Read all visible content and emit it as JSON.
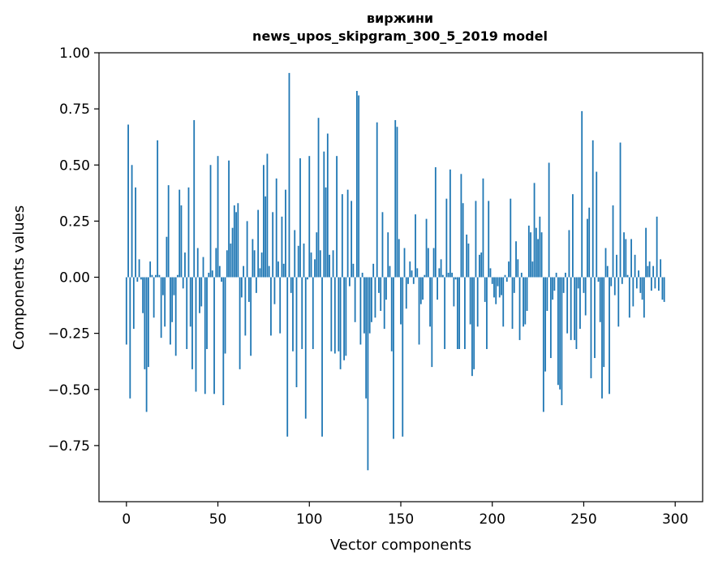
{
  "chart_data": {
    "type": "bar",
    "title": "виржини",
    "subtitle": "news_upos_skipgram_300_5_2019 model",
    "xlabel": "Vector components",
    "ylabel": "Components values",
    "xlim": [
      -15,
      315
    ],
    "ylim": [
      -1.0,
      1.0
    ],
    "xticks": [
      0,
      50,
      100,
      150,
      200,
      250,
      300
    ],
    "xtick_labels": [
      "0",
      "50",
      "100",
      "150",
      "200",
      "250",
      "300"
    ],
    "yticks": [
      1.0,
      0.75,
      0.5,
      0.25,
      0.0,
      -0.25,
      -0.5,
      -0.75
    ],
    "ytick_labels": [
      "1.00",
      "0.75",
      "0.50",
      "0.25",
      "0.00",
      "−0.25",
      "−0.50",
      "−0.75"
    ],
    "bar_color": "#1f77b4",
    "grid": false,
    "values": [
      -0.3,
      0.68,
      -0.54,
      0.5,
      -0.23,
      0.4,
      -0.02,
      0.08,
      -0.01,
      -0.16,
      -0.41,
      -0.6,
      -0.4,
      0.07,
      0.01,
      -0.18,
      0.01,
      0.61,
      0.01,
      -0.27,
      -0.08,
      -0.22,
      0.18,
      0.41,
      -0.3,
      -0.2,
      -0.08,
      -0.35,
      0.01,
      0.39,
      0.32,
      -0.05,
      0.11,
      -0.32,
      0.4,
      -0.22,
      -0.41,
      0.7,
      -0.51,
      0.13,
      -0.16,
      -0.13,
      0.09,
      -0.52,
      -0.32,
      0.02,
      0.5,
      0.03,
      -0.52,
      0.13,
      0.54,
      0.05,
      -0.02,
      -0.57,
      -0.34,
      0.12,
      0.52,
      0.15,
      0.22,
      0.32,
      0.29,
      0.33,
      -0.41,
      -0.09,
      0.05,
      -0.26,
      0.25,
      -0.11,
      -0.35,
      0.17,
      0.12,
      -0.07,
      0.3,
      0.04,
      0.11,
      0.5,
      0.36,
      0.55,
      0.05,
      -0.26,
      0.29,
      -0.12,
      0.44,
      0.07,
      -0.25,
      0.27,
      0.06,
      0.39,
      -0.71,
      0.91,
      -0.07,
      -0.33,
      0.21,
      -0.49,
      0.14,
      0.53,
      -0.32,
      0.15,
      -0.63,
      -0.01,
      0.54,
      0.11,
      -0.32,
      0.08,
      0.2,
      0.71,
      0.12,
      -0.71,
      0.56,
      0.4,
      0.64,
      0.1,
      -0.33,
      0.12,
      -0.34,
      0.54,
      -0.33,
      -0.41,
      0.37,
      -0.37,
      -0.35,
      0.39,
      -0.04,
      0.34,
      0.06,
      -0.2,
      0.83,
      0.81,
      -0.3,
      0.02,
      -0.25,
      -0.54,
      -0.86,
      -0.25,
      -0.2,
      0.06,
      -0.18,
      0.69,
      -0.07,
      -0.15,
      0.29,
      -0.23,
      -0.1,
      0.2,
      0.05,
      -0.33,
      -0.72,
      0.7,
      0.67,
      0.17,
      -0.21,
      -0.71,
      0.13,
      -0.14,
      -0.03,
      0.07,
      0.03,
      -0.03,
      0.28,
      0.04,
      -0.3,
      -0.12,
      -0.1,
      0.01,
      0.26,
      0.13,
      -0.22,
      -0.4,
      0.13,
      0.49,
      -0.1,
      0.04,
      0.08,
      0.01,
      -0.32,
      0.35,
      0.02,
      0.48,
      0.02,
      -0.13,
      -0.01,
      -0.32,
      -0.32,
      0.46,
      0.33,
      -0.32,
      0.19,
      0.15,
      -0.21,
      -0.44,
      -0.41,
      0.34,
      -0.22,
      0.1,
      0.11,
      0.44,
      -0.11,
      -0.32,
      0.34,
      0.04,
      -0.03,
      -0.09,
      -0.12,
      -0.04,
      -0.09,
      -0.08,
      -0.22,
      0.01,
      -0.02,
      0.07,
      0.35,
      -0.23,
      -0.07,
      0.16,
      0.08,
      -0.28,
      0.02,
      -0.22,
      -0.21,
      -0.15,
      0.23,
      0.2,
      0.07,
      0.42,
      0.22,
      0.17,
      0.27,
      0.2,
      -0.6,
      -0.42,
      -0.15,
      0.51,
      -0.36,
      -0.1,
      -0.06,
      0.02,
      -0.48,
      -0.5,
      -0.57,
      -0.07,
      0.02,
      -0.25,
      0.21,
      -0.28,
      0.37,
      -0.28,
      -0.32,
      -0.05,
      -0.23,
      0.74,
      -0.07,
      -0.17,
      0.26,
      0.31,
      -0.45,
      0.61,
      -0.36,
      0.47,
      -0.02,
      -0.2,
      -0.54,
      -0.4,
      0.13,
      0.05,
      -0.52,
      -0.04,
      0.32,
      -0.08,
      0.1,
      -0.22,
      0.6,
      -0.03,
      0.2,
      0.17,
      0.01,
      -0.18,
      0.17,
      -0.13,
      0.1,
      -0.05,
      0.03,
      -0.07,
      -0.1,
      -0.18,
      0.22,
      0.05,
      0.07,
      -0.06,
      0.05,
      -0.05,
      0.27,
      -0.06,
      0.08,
      -0.1,
      -0.11
    ]
  }
}
